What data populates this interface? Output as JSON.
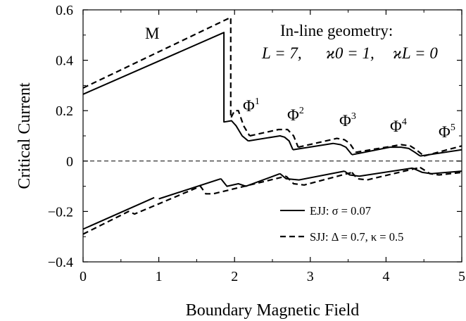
{
  "chart_data": {
    "type": "line",
    "title": "",
    "xlabel": "Boundary Magnetic Field",
    "ylabel": "Critical Current",
    "xlim": [
      0,
      5
    ],
    "ylim": [
      -0.4,
      0.6
    ],
    "x_ticks": [
      0,
      1,
      2,
      3,
      4,
      5
    ],
    "y_ticks": [
      -0.4,
      -0.2,
      0,
      0.2,
      0.4,
      0.6
    ],
    "y_tick_labels": [
      "−0.4",
      "−0.2",
      "0",
      "0.2",
      "0.4",
      "0.6"
    ],
    "zero_line": "dashed",
    "legend_placement": "bottom-right",
    "annotations": {
      "geometry": "In-line geometry:",
      "params_L": "L = 7,",
      "params_k0": "ϰ0 = 1,",
      "params_kL": "ϰL = 0",
      "mode_M": "M",
      "modes": [
        {
          "base": "Φ",
          "sup": "1"
        },
        {
          "base": "Φ",
          "sup": "2"
        },
        {
          "base": "Φ",
          "sup": "3"
        },
        {
          "base": "Φ",
          "sup": "4"
        },
        {
          "base": "Φ",
          "sup": "5"
        }
      ]
    },
    "series": [
      {
        "name": "EJJ: σ = 0.07",
        "style": "solid",
        "color": "#000000",
        "segments": [
          [
            [
              0,
              0.265
            ],
            [
              1.86,
              0.51
            ],
            [
              1.86,
              0.155
            ],
            [
              1.96,
              0.16
            ],
            [
              2.02,
              0.14
            ],
            [
              2.1,
              0.1
            ],
            [
              2.18,
              0.08
            ]
          ],
          [
            [
              2.18,
              0.08
            ],
            [
              2.6,
              0.1
            ],
            [
              2.66,
              0.095
            ],
            [
              2.72,
              0.08
            ],
            [
              2.77,
              0.045
            ]
          ],
          [
            [
              2.77,
              0.045
            ],
            [
              3.3,
              0.07
            ],
            [
              3.4,
              0.065
            ],
            [
              3.47,
              0.055
            ],
            [
              3.55,
              0.025
            ]
          ],
          [
            [
              3.55,
              0.025
            ],
            [
              4.05,
              0.055
            ],
            [
              4.2,
              0.055
            ],
            [
              4.3,
              0.05
            ],
            [
              4.38,
              0.035
            ],
            [
              4.45,
              0.02
            ]
          ],
          [
            [
              4.45,
              0.02
            ],
            [
              5.0,
              0.045
            ]
          ],
          [
            [
              0,
              -0.27
            ],
            [
              0.94,
              -0.145
            ]
          ],
          [
            [
              1.0,
              -0.15
            ],
            [
              1.82,
              -0.07
            ]
          ],
          [
            [
              1.82,
              -0.07
            ],
            [
              1.9,
              -0.1
            ],
            [
              2.05,
              -0.09
            ],
            [
              2.15,
              -0.1
            ],
            [
              2.6,
              -0.05
            ]
          ],
          [
            [
              2.6,
              -0.05
            ],
            [
              2.68,
              -0.07
            ],
            [
              2.85,
              -0.075
            ],
            [
              3.45,
              -0.04
            ]
          ],
          [
            [
              3.45,
              -0.04
            ],
            [
              3.52,
              -0.055
            ],
            [
              3.65,
              -0.06
            ],
            [
              4.35,
              -0.028
            ]
          ],
          [
            [
              4.35,
              -0.028
            ],
            [
              4.48,
              -0.045
            ],
            [
              4.6,
              -0.05
            ],
            [
              5.0,
              -0.04
            ]
          ]
        ]
      },
      {
        "name": "SJJ: Δ = 0.7, κ = 0.5",
        "style": "dashed",
        "color": "#000000",
        "segments": [
          [
            [
              0,
              0.29
            ],
            [
              1.95,
              0.57
            ],
            [
              1.95,
              0.17
            ],
            [
              2.0,
              0.2
            ],
            [
              2.05,
              0.2
            ],
            [
              2.12,
              0.14
            ],
            [
              2.2,
              0.1
            ]
          ],
          [
            [
              2.2,
              0.1
            ],
            [
              2.58,
              0.125
            ],
            [
              2.7,
              0.125
            ],
            [
              2.78,
              0.1
            ],
            [
              2.84,
              0.055
            ]
          ],
          [
            [
              2.84,
              0.055
            ],
            [
              3.35,
              0.09
            ],
            [
              3.45,
              0.085
            ],
            [
              3.52,
              0.07
            ],
            [
              3.6,
              0.035
            ]
          ],
          [
            [
              3.6,
              0.035
            ],
            [
              4.2,
              0.065
            ],
            [
              4.32,
              0.06
            ],
            [
              4.4,
              0.045
            ],
            [
              4.5,
              0.02
            ]
          ],
          [
            [
              4.5,
              0.02
            ],
            [
              5.0,
              0.06
            ]
          ],
          [
            [
              0,
              -0.29
            ],
            [
              0.6,
              -0.2
            ],
            [
              0.68,
              -0.21
            ],
            [
              0.76,
              -0.2
            ]
          ],
          [
            [
              0.76,
              -0.2
            ],
            [
              1.55,
              -0.1
            ],
            [
              1.62,
              -0.13
            ],
            [
              1.72,
              -0.13
            ],
            [
              2.68,
              -0.06
            ]
          ],
          [
            [
              2.68,
              -0.06
            ],
            [
              2.78,
              -0.09
            ],
            [
              2.92,
              -0.095
            ],
            [
              3.55,
              -0.045
            ]
          ],
          [
            [
              3.55,
              -0.045
            ],
            [
              3.62,
              -0.07
            ],
            [
              3.75,
              -0.075
            ],
            [
              4.45,
              -0.025
            ]
          ],
          [
            [
              4.45,
              -0.025
            ],
            [
              4.58,
              -0.05
            ],
            [
              4.7,
              -0.055
            ],
            [
              5.0,
              -0.045
            ]
          ]
        ]
      }
    ]
  }
}
